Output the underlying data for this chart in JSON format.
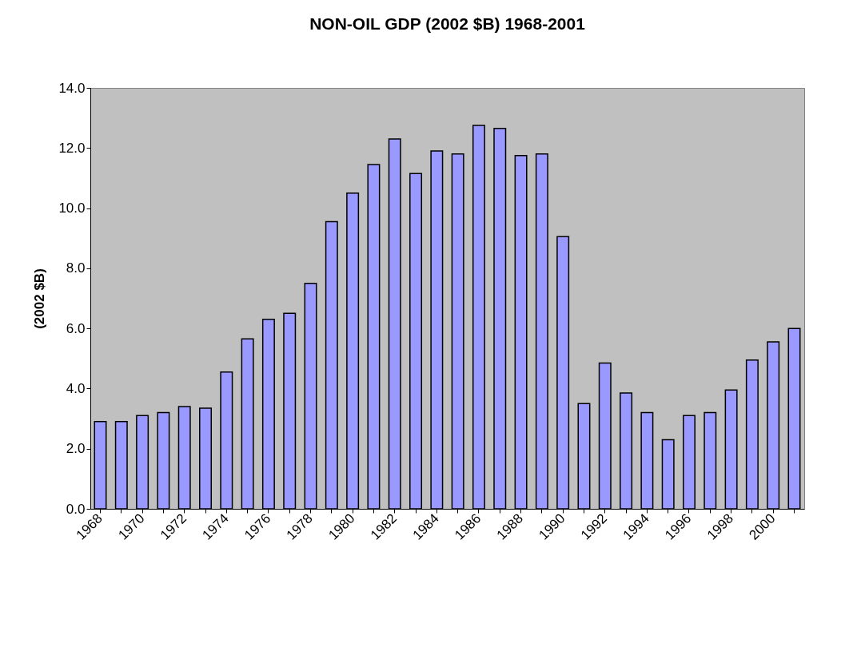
{
  "chart_data": {
    "type": "bar",
    "title": "NON-OIL GDP (2002 $B) 1968-2001",
    "ylabel": "(2002 $B)",
    "categories": [
      "1968",
      null,
      "1970",
      null,
      "1972",
      null,
      "1974",
      null,
      "1976",
      null,
      "1978",
      null,
      "1980",
      null,
      "1982",
      null,
      "1984",
      null,
      "1986",
      null,
      "1988",
      null,
      "1990",
      null,
      "1992",
      null,
      "1994",
      null,
      "1996",
      null,
      "1998",
      null,
      "2000",
      null
    ],
    "values": [
      2.9,
      2.9,
      3.1,
      3.2,
      3.4,
      3.35,
      4.55,
      5.65,
      6.3,
      6.5,
      7.5,
      9.55,
      10.5,
      11.45,
      12.3,
      11.15,
      11.9,
      11.8,
      12.75,
      12.65,
      11.75,
      11.8,
      9.05,
      3.5,
      4.85,
      3.85,
      3.2,
      2.3,
      3.1,
      3.2,
      3.95,
      4.95,
      5.55,
      6.0
    ],
    "color": "#9999ff",
    "ylim": [
      0,
      14
    ],
    "yticks": [
      {
        "value": 0,
        "label": "0.0"
      },
      {
        "value": 2,
        "label": "2.0"
      },
      {
        "value": 4,
        "label": "4.0"
      },
      {
        "value": 6,
        "label": "6.0"
      },
      {
        "value": 8,
        "label": "8.0"
      },
      {
        "value": 10,
        "label": "10.0"
      },
      {
        "value": 12,
        "label": "12.0"
      },
      {
        "value": 14,
        "label": "14.0"
      }
    ],
    "grid": false,
    "legend": false
  }
}
